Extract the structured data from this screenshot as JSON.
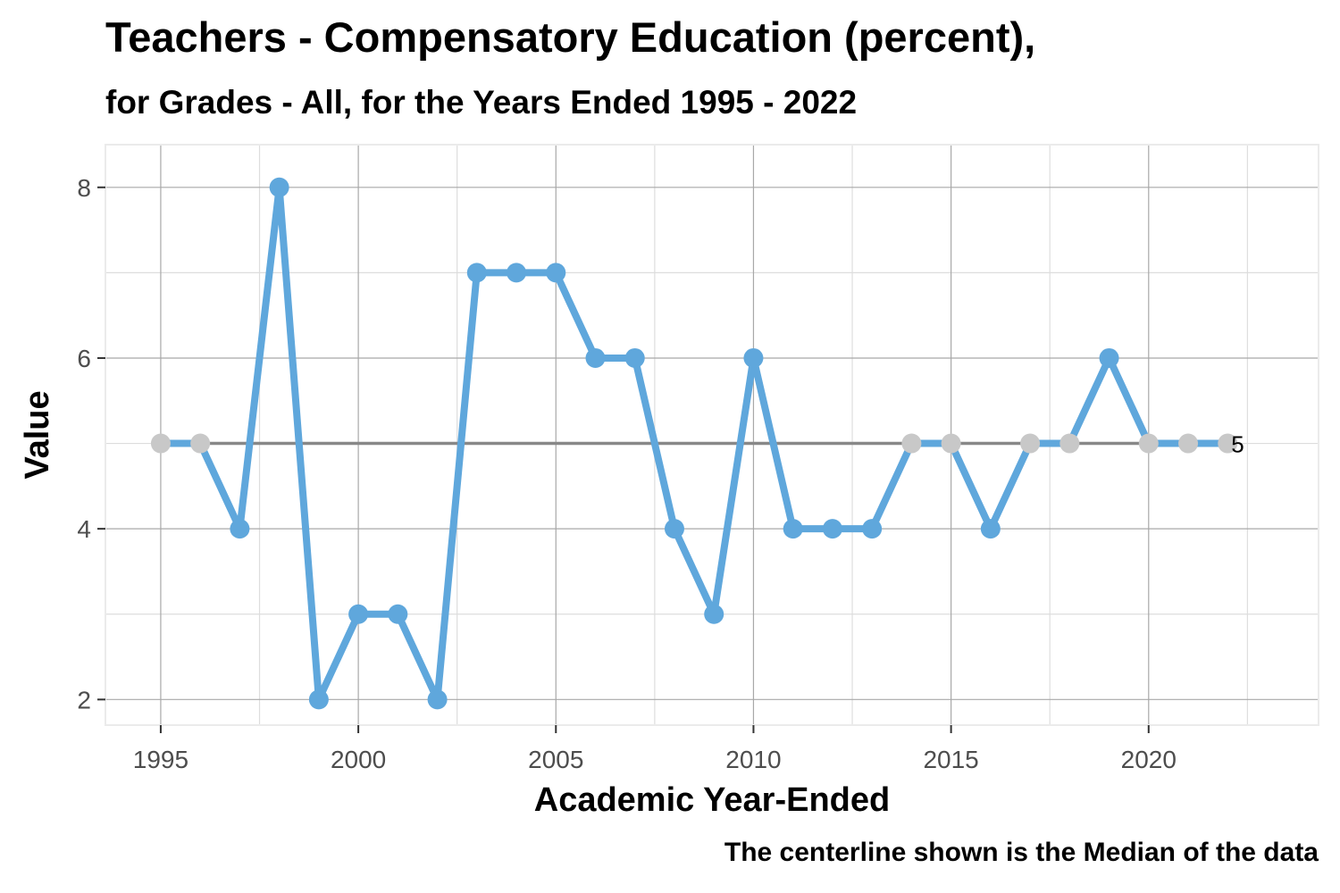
{
  "chart_data": {
    "type": "line",
    "title": "Teachers - Compensatory Education (percent),",
    "subtitle": "for Grades - All, for the Years Ended 1995  -  2022",
    "xlabel": "Academic Year-Ended",
    "ylabel": "Value",
    "caption": "The centerline shown is the Median of the data",
    "xlim": [
      1993.6,
      2024.3
    ],
    "ylim": [
      1.7,
      8.5
    ],
    "x_ticks": [
      1995,
      2000,
      2005,
      2010,
      2015,
      2020
    ],
    "y_ticks": [
      2,
      4,
      6,
      8
    ],
    "x": [
      1995,
      1996,
      1997,
      1998,
      1999,
      2000,
      2001,
      2002,
      2003,
      2004,
      2005,
      2006,
      2007,
      2008,
      2009,
      2010,
      2011,
      2012,
      2013,
      2014,
      2015,
      2016,
      2017,
      2018,
      2019,
      2020,
      2021,
      2022
    ],
    "series": [
      {
        "values": [
          5,
          5,
          4,
          8,
          2,
          3,
          3,
          2,
          7,
          7,
          7,
          6,
          6,
          4,
          3,
          6,
          4,
          4,
          4,
          5,
          5,
          4,
          5,
          5,
          6,
          5,
          5,
          5
        ]
      }
    ],
    "median": 5,
    "median_label": "5",
    "grid": true,
    "colors": {
      "line": "#5fa7dc",
      "point": "#5fa7dc",
      "point_on_median": "#c8c8c8",
      "centerline": "#888888",
      "grid_major": "#a8a8a8",
      "grid_minor": "#dddddd",
      "panel_border": "#ebebeb"
    }
  }
}
